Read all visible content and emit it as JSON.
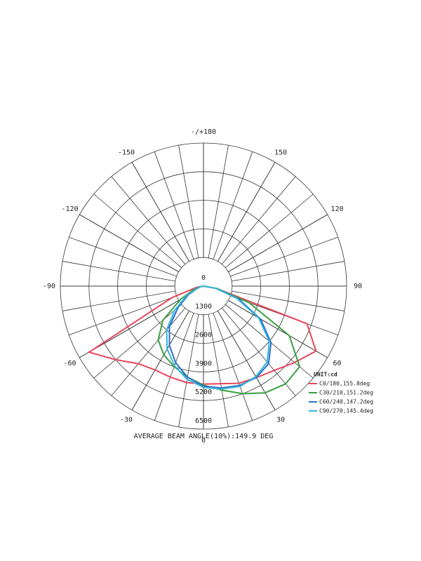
{
  "chart_data": {
    "type": "polar",
    "theta_zero": "bottom",
    "caption": "AVERAGE BEAM ANGLE(10%):149.9 DEG",
    "legend_title": "UNIT:cd",
    "angles": [
      -90,
      -80,
      -70,
      -60,
      -50,
      -40,
      -30,
      -20,
      -10,
      0,
      10,
      20,
      30,
      40,
      50,
      60,
      70,
      80,
      90
    ],
    "series": [
      {
        "name": "C0/180,155.8deg",
        "color": "#e8455a",
        "values": [
          0,
          300,
          1500,
          6000,
          5200,
          4600,
          4400,
          4400,
          4450,
          4450,
          4500,
          4700,
          4800,
          5000,
          5400,
          5900,
          5000,
          600,
          0
        ]
      },
      {
        "name": "C30/210,151.2deg",
        "color": "#3aa040",
        "values": [
          0,
          150,
          500,
          1200,
          2400,
          3200,
          3600,
          3900,
          4200,
          4500,
          4800,
          5200,
          5600,
          5800,
          5700,
          4500,
          2200,
          600,
          0
        ]
      },
      {
        "name": "C60/240,147.2deg",
        "color": "#2a6fd0",
        "values": [
          0,
          100,
          300,
          800,
          1500,
          2400,
          3100,
          3700,
          4200,
          4550,
          4700,
          4800,
          4800,
          4600,
          4000,
          3000,
          1700,
          600,
          0
        ]
      },
      {
        "name": "C90/270,145.4deg",
        "color": "#35b5d5",
        "values": [
          0,
          120,
          350,
          900,
          1700,
          2600,
          3300,
          3850,
          4300,
          4600,
          4750,
          4850,
          4750,
          4500,
          3900,
          2900,
          1600,
          550,
          0
        ]
      }
    ],
    "rlim": [
      0,
      6500
    ],
    "rticks": [
      0,
      1300,
      2600,
      3900,
      5200,
      6500
    ],
    "angle_ticks": [
      -150,
      -120,
      -90,
      -60,
      -30,
      0,
      30,
      60,
      90,
      120,
      150,
      {
        "value": 180,
        "label": "-/+180"
      }
    ],
    "grid": true
  }
}
